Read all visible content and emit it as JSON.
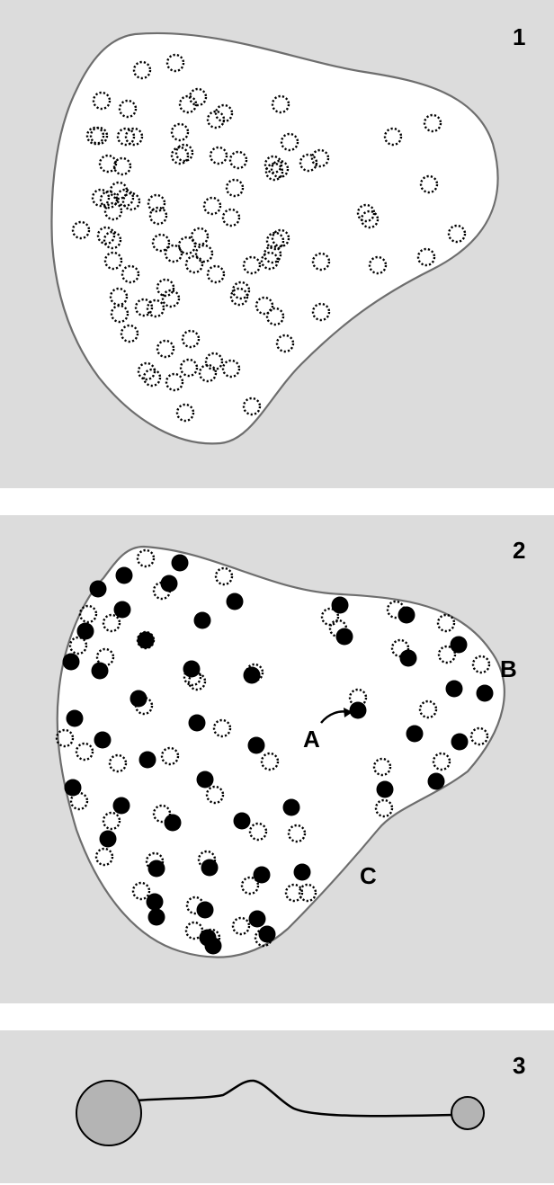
{
  "panels": [
    {
      "number": "1"
    },
    {
      "number": "2",
      "labels": {
        "A": "A",
        "B": "B",
        "C": "C"
      }
    },
    {
      "number": "3"
    }
  ],
  "colors": {
    "background": "#dcdcdc",
    "cell_fill": "#ffffff",
    "outline": "#6e6e6e",
    "marker": "#000000",
    "node_fill": "#b4b4b4"
  },
  "legend_semantics": {
    "dotted_circle": "dotted-ring-marker",
    "filled_circle": "solid-dot-marker"
  }
}
